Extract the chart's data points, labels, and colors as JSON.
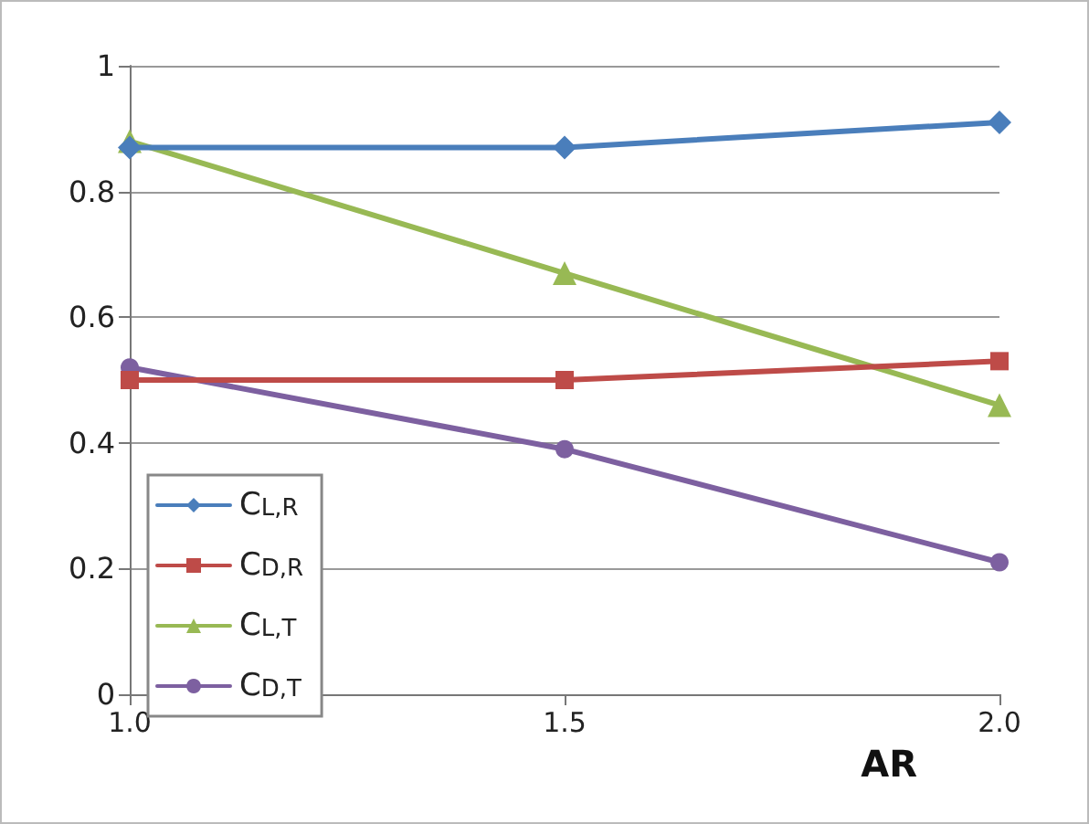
{
  "chart_data": {
    "type": "line",
    "xlabel": "AR",
    "x": [
      1.0,
      1.5,
      2.0
    ],
    "series": [
      {
        "name": "C$_{L,R}$",
        "color": "#4a7ebb",
        "marker": "diamond",
        "values": [
          0.87,
          0.87,
          0.91
        ]
      },
      {
        "name": "C$_{D,R}$",
        "color": "#be4b48",
        "marker": "square",
        "values": [
          0.5,
          0.5,
          0.53
        ]
      },
      {
        "name": "C$_{L,T}$",
        "color": "#98b954",
        "marker": "triangle",
        "values": [
          0.88,
          0.67,
          0.46
        ]
      },
      {
        "name": "C$_{D,T}$",
        "color": "#7d60a0",
        "marker": "circle",
        "values": [
          0.52,
          0.39,
          0.21
        ]
      }
    ],
    "xlim": [
      1.0,
      2.0
    ],
    "xticks": [
      {
        "value": 1.0,
        "label": "1.0"
      },
      {
        "value": 1.5,
        "label": "1.5"
      },
      {
        "value": 2.0,
        "label": "2.0"
      }
    ],
    "ylim": [
      0,
      1
    ],
    "yticks": [
      0,
      0.2,
      0.4,
      0.6,
      0.8,
      1
    ],
    "grid": "y",
    "legend": "bottom left",
    "line_style": "solid"
  }
}
